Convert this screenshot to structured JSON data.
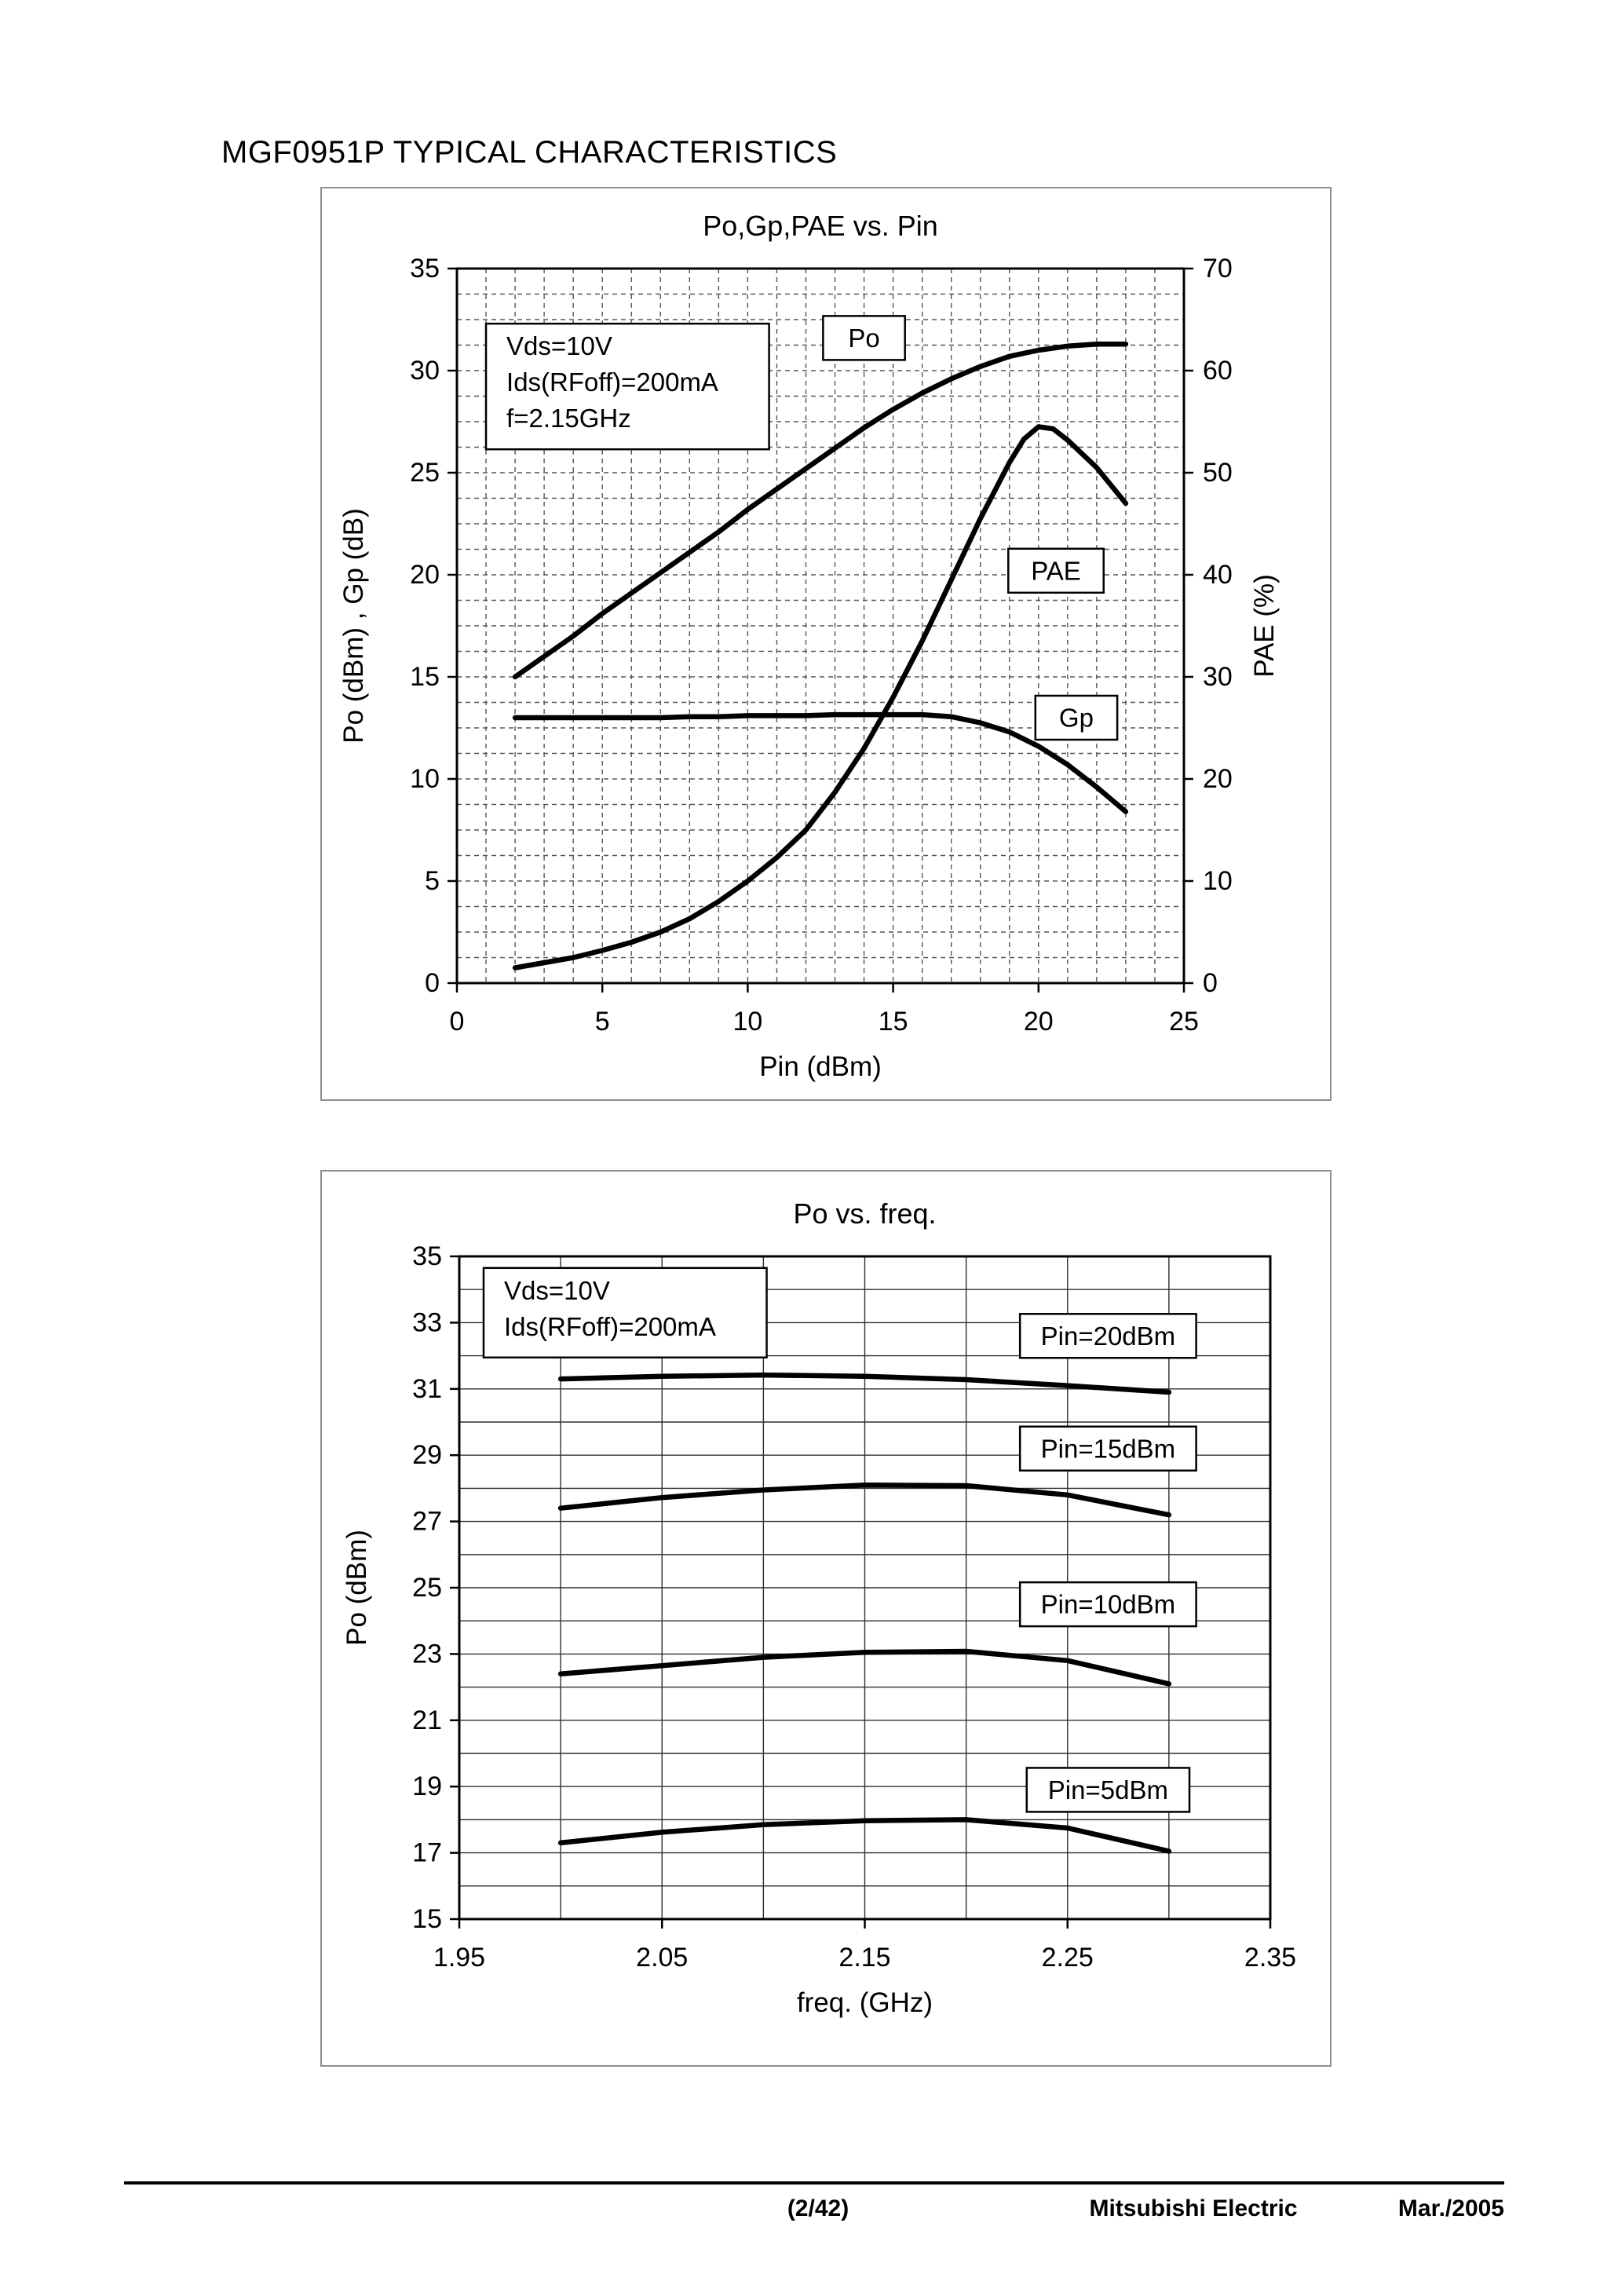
{
  "page": {
    "title": "MGF0951P TYPICAL CHARACTERISTICS",
    "footer": {
      "page_number": "(2/42)",
      "company": "Mitsubishi Electric",
      "date": "Mar./2005"
    }
  },
  "chart_data": [
    {
      "type": "line",
      "title": "Po,Gp,PAE vs. Pin",
      "xlabel": "Pin (dBm)",
      "ylabel_left": "Po (dBm) , Gp (dB)",
      "ylabel_right": "PAE (%)",
      "xlim": [
        0,
        25
      ],
      "ylim_left": [
        0,
        35
      ],
      "ylim_right": [
        0,
        70
      ],
      "xticks": [
        "0",
        "5",
        "10",
        "15",
        "20",
        "25"
      ],
      "yticks_left": [
        "0",
        "5",
        "10",
        "15",
        "20",
        "25",
        "30",
        "35"
      ],
      "yticks_right": [
        "0",
        "10",
        "20",
        "30",
        "40",
        "50",
        "60",
        "70"
      ],
      "grid": {
        "style": "dashed",
        "x_step": 1,
        "y_step": 1.25,
        "color": "#555555"
      },
      "line_color": "#000000",
      "conditions": {
        "x": 1.0,
        "y": 32.3,
        "lines": [
          "Vds=10V",
          "Ids(RFoff)=200mA",
          "f=2.15GHz"
        ]
      },
      "labels": [
        {
          "text": "Po",
          "x": 14.0,
          "y": 31.6
        },
        {
          "text": "PAE",
          "x": 20.6,
          "y": 20.2
        },
        {
          "text": "Gp",
          "x": 21.3,
          "y": 13.0
        }
      ],
      "series": [
        {
          "name": "Po",
          "axis": "left",
          "x": [
            2,
            3,
            4,
            5,
            6,
            7,
            8,
            9,
            10,
            11,
            12,
            13,
            14,
            15,
            16,
            17,
            18,
            19,
            20,
            21,
            22,
            23
          ],
          "y": [
            15,
            16,
            17,
            18.1,
            19.1,
            20.1,
            21.1,
            22.1,
            23.2,
            24.2,
            25.2,
            26.2,
            27.2,
            28.1,
            28.9,
            29.6,
            30.2,
            30.7,
            31.0,
            31.2,
            31.3,
            31.3
          ]
        },
        {
          "name": "Gp",
          "axis": "left",
          "x": [
            2,
            3,
            4,
            5,
            6,
            7,
            8,
            9,
            10,
            11,
            12,
            13,
            14,
            15,
            16,
            17,
            18,
            19,
            20,
            21,
            22,
            23
          ],
          "y": [
            13,
            13,
            13,
            13,
            13,
            13,
            13.05,
            13.05,
            13.1,
            13.1,
            13.1,
            13.15,
            13.15,
            13.15,
            13.15,
            13.05,
            12.75,
            12.3,
            11.6,
            10.7,
            9.6,
            8.4
          ]
        },
        {
          "name": "PAE",
          "axis": "right",
          "x": [
            2,
            3,
            4,
            5,
            6,
            7,
            8,
            9,
            10,
            11,
            12,
            13,
            14,
            15,
            16,
            17,
            18,
            19,
            19.5,
            20,
            20.5,
            21,
            22,
            23
          ],
          "y": [
            1.5,
            2,
            2.5,
            3.2,
            4,
            5,
            6.3,
            8,
            10,
            12.3,
            15,
            18.7,
            23,
            28,
            33.5,
            39.5,
            45.5,
            51,
            53.3,
            54.5,
            54.3,
            53.2,
            50.5,
            47
          ]
        }
      ]
    },
    {
      "type": "line",
      "title": "Po vs. freq.",
      "xlabel": "freq. (GHz)",
      "ylabel_left": "Po (dBm)",
      "xlim": [
        1.95,
        2.35
      ],
      "ylim_left": [
        15,
        35
      ],
      "xticks": [
        "1.95",
        "2.05",
        "2.15",
        "2.25",
        "2.35"
      ],
      "yticks_left": [
        "15",
        "17",
        "19",
        "21",
        "23",
        "25",
        "27",
        "29",
        "31",
        "33",
        "35"
      ],
      "grid": {
        "style": "solid",
        "x_step": 0.05,
        "y_step": 1,
        "color": "#2f2f2f"
      },
      "line_color": "#000000",
      "conditions": {
        "x": 1.962,
        "y": 34.65,
        "lines": [
          "Vds=10V",
          "Ids(RFoff)=200mA"
        ]
      },
      "labels": [
        {
          "text": "Pin=20dBm",
          "x": 2.27,
          "y": 32.6
        },
        {
          "text": "Pin=15dBm",
          "x": 2.27,
          "y": 29.2
        },
        {
          "text": "Pin=10dBm",
          "x": 2.27,
          "y": 24.5
        },
        {
          "text": "Pin=5dBm",
          "x": 2.27,
          "y": 18.9
        }
      ],
      "series": [
        {
          "name": "Pin=20dBm",
          "axis": "left",
          "x": [
            2,
            2.05,
            2.1,
            2.15,
            2.2,
            2.25,
            2.3
          ],
          "y": [
            31.3,
            31.38,
            31.42,
            31.38,
            31.28,
            31.1,
            30.9
          ]
        },
        {
          "name": "Pin=15dBm",
          "axis": "left",
          "x": [
            2,
            2.05,
            2.1,
            2.15,
            2.2,
            2.25,
            2.3
          ],
          "y": [
            27.4,
            27.72,
            27.95,
            28.1,
            28.08,
            27.8,
            27.2
          ]
        },
        {
          "name": "Pin=10dBm",
          "axis": "left",
          "x": [
            2,
            2.05,
            2.1,
            2.15,
            2.2,
            2.25,
            2.3
          ],
          "y": [
            22.4,
            22.65,
            22.9,
            23.05,
            23.08,
            22.8,
            22.1
          ]
        },
        {
          "name": "Pin=5dBm",
          "axis": "left",
          "x": [
            2,
            2.05,
            2.1,
            2.15,
            2.2,
            2.25,
            2.3
          ],
          "y": [
            17.3,
            17.62,
            17.85,
            17.97,
            18.0,
            17.75,
            17.05
          ]
        }
      ]
    }
  ]
}
